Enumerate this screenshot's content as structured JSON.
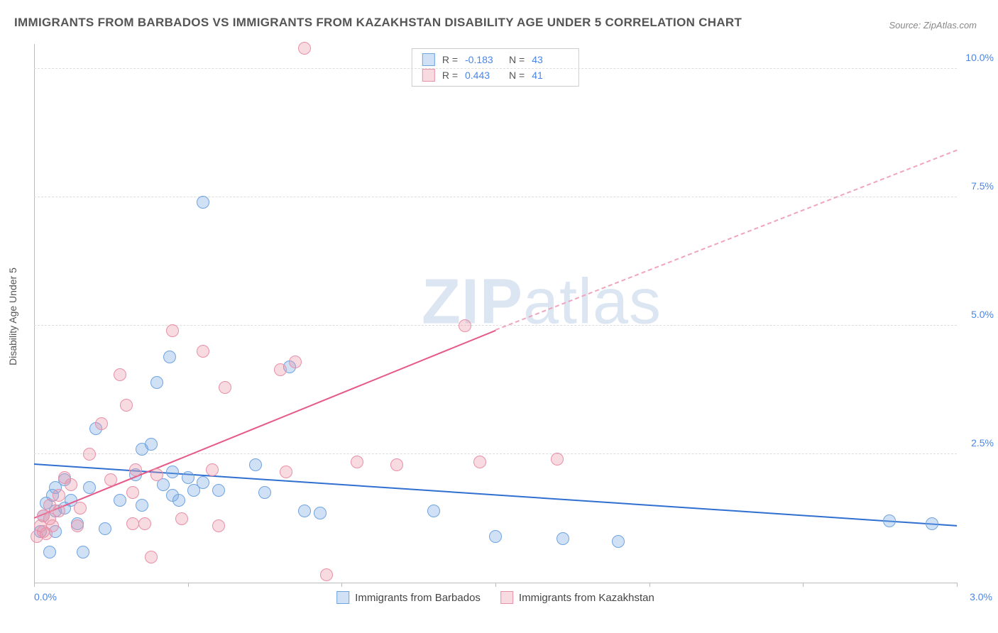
{
  "title": "IMMIGRANTS FROM BARBADOS VS IMMIGRANTS FROM KAZAKHSTAN DISABILITY AGE UNDER 5 CORRELATION CHART",
  "source": "Source: ZipAtlas.com",
  "watermark_bold": "ZIP",
  "watermark_light": "atlas",
  "chart": {
    "type": "scatter",
    "background_color": "#ffffff",
    "grid_color": "#dddddd",
    "axis_color": "#bbbbbb",
    "tick_label_color": "#4a86e8",
    "axis_title_color": "#555555",
    "y_axis_title": "Disability Age Under 5",
    "xlim": [
      0.0,
      3.0
    ],
    "ylim": [
      0.0,
      10.5
    ],
    "x_ticks": [
      0.0,
      0.5,
      1.0,
      1.5,
      2.0,
      2.5,
      3.0
    ],
    "x_tick_labels": [
      "0.0%",
      "",
      "",
      "",
      "",
      "",
      "3.0%"
    ],
    "y_gridlines": [
      2.5,
      5.0,
      7.5,
      10.0
    ],
    "y_tick_labels": [
      "2.5%",
      "5.0%",
      "7.5%",
      "10.0%"
    ],
    "marker_radius": 9,
    "marker_stroke_width": 1.5,
    "series": [
      {
        "id": "barbados",
        "label": "Immigrants from Barbados",
        "fill": "rgba(120,170,230,0.35)",
        "stroke": "#6fa3e0",
        "R": "-0.183",
        "N": "43",
        "trend": {
          "x1": 0.0,
          "y1": 2.3,
          "x2": 3.0,
          "y2": 1.1,
          "color": "#2f6fd0",
          "dash": false
        },
        "points": [
          [
            0.02,
            1.0
          ],
          [
            0.03,
            1.3
          ],
          [
            0.04,
            1.55
          ],
          [
            0.05,
            0.6
          ],
          [
            0.06,
            1.7
          ],
          [
            0.07,
            1.4
          ],
          [
            0.07,
            1.85
          ],
          [
            0.07,
            1.0
          ],
          [
            0.1,
            2.0
          ],
          [
            0.1,
            1.45
          ],
          [
            0.12,
            1.6
          ],
          [
            0.14,
            1.15
          ],
          [
            0.16,
            0.6
          ],
          [
            0.18,
            1.85
          ],
          [
            0.2,
            3.0
          ],
          [
            0.23,
            1.05
          ],
          [
            0.28,
            1.6
          ],
          [
            0.35,
            2.6
          ],
          [
            0.35,
            1.5
          ],
          [
            0.38,
            2.7
          ],
          [
            0.4,
            3.9
          ],
          [
            0.42,
            1.9
          ],
          [
            0.44,
            4.4
          ],
          [
            0.45,
            2.15
          ],
          [
            0.45,
            1.7
          ],
          [
            0.47,
            1.6
          ],
          [
            0.5,
            2.05
          ],
          [
            0.52,
            1.8
          ],
          [
            0.55,
            7.4
          ],
          [
            0.55,
            1.95
          ],
          [
            0.6,
            1.8
          ],
          [
            0.72,
            2.3
          ],
          [
            0.75,
            1.75
          ],
          [
            0.83,
            4.2
          ],
          [
            0.88,
            1.4
          ],
          [
            0.93,
            1.35
          ],
          [
            1.3,
            1.4
          ],
          [
            1.5,
            0.9
          ],
          [
            1.72,
            0.85
          ],
          [
            1.9,
            0.8
          ],
          [
            2.78,
            1.2
          ],
          [
            2.92,
            1.15
          ],
          [
            0.33,
            2.1
          ]
        ]
      },
      {
        "id": "kazakhstan",
        "label": "Immigrants from Kazakhstan",
        "fill": "rgba(235,150,170,0.35)",
        "stroke": "#e890a8",
        "R": "0.443",
        "N": "41",
        "trend_solid": {
          "x1": 0.0,
          "y1": 1.25,
          "x2": 1.5,
          "y2": 4.9,
          "color": "#e65a8a",
          "dash": false
        },
        "trend_dash": {
          "x1": 1.5,
          "y1": 4.9,
          "x2": 3.0,
          "y2": 8.4,
          "color": "#f0a5bc",
          "dash": true
        },
        "points": [
          [
            0.01,
            0.9
          ],
          [
            0.02,
            1.1
          ],
          [
            0.03,
            1.0
          ],
          [
            0.03,
            1.3
          ],
          [
            0.04,
            0.95
          ],
          [
            0.05,
            1.5
          ],
          [
            0.05,
            1.25
          ],
          [
            0.06,
            1.1
          ],
          [
            0.08,
            1.4
          ],
          [
            0.08,
            1.7
          ],
          [
            0.1,
            2.05
          ],
          [
            0.12,
            1.9
          ],
          [
            0.14,
            1.1
          ],
          [
            0.15,
            1.45
          ],
          [
            0.22,
            3.1
          ],
          [
            0.25,
            2.0
          ],
          [
            0.28,
            4.05
          ],
          [
            0.3,
            3.45
          ],
          [
            0.32,
            1.15
          ],
          [
            0.32,
            1.75
          ],
          [
            0.33,
            2.2
          ],
          [
            0.36,
            1.15
          ],
          [
            0.38,
            0.5
          ],
          [
            0.4,
            2.1
          ],
          [
            0.45,
            4.9
          ],
          [
            0.48,
            1.25
          ],
          [
            0.55,
            4.5
          ],
          [
            0.58,
            2.2
          ],
          [
            0.6,
            1.1
          ],
          [
            0.62,
            3.8
          ],
          [
            0.8,
            4.15
          ],
          [
            0.82,
            2.15
          ],
          [
            0.85,
            4.3
          ],
          [
            0.88,
            10.4
          ],
          [
            0.95,
            0.15
          ],
          [
            1.05,
            2.35
          ],
          [
            1.18,
            2.3
          ],
          [
            1.4,
            5.0
          ],
          [
            1.45,
            2.35
          ],
          [
            1.7,
            2.4
          ],
          [
            0.18,
            2.5
          ]
        ]
      }
    ]
  }
}
